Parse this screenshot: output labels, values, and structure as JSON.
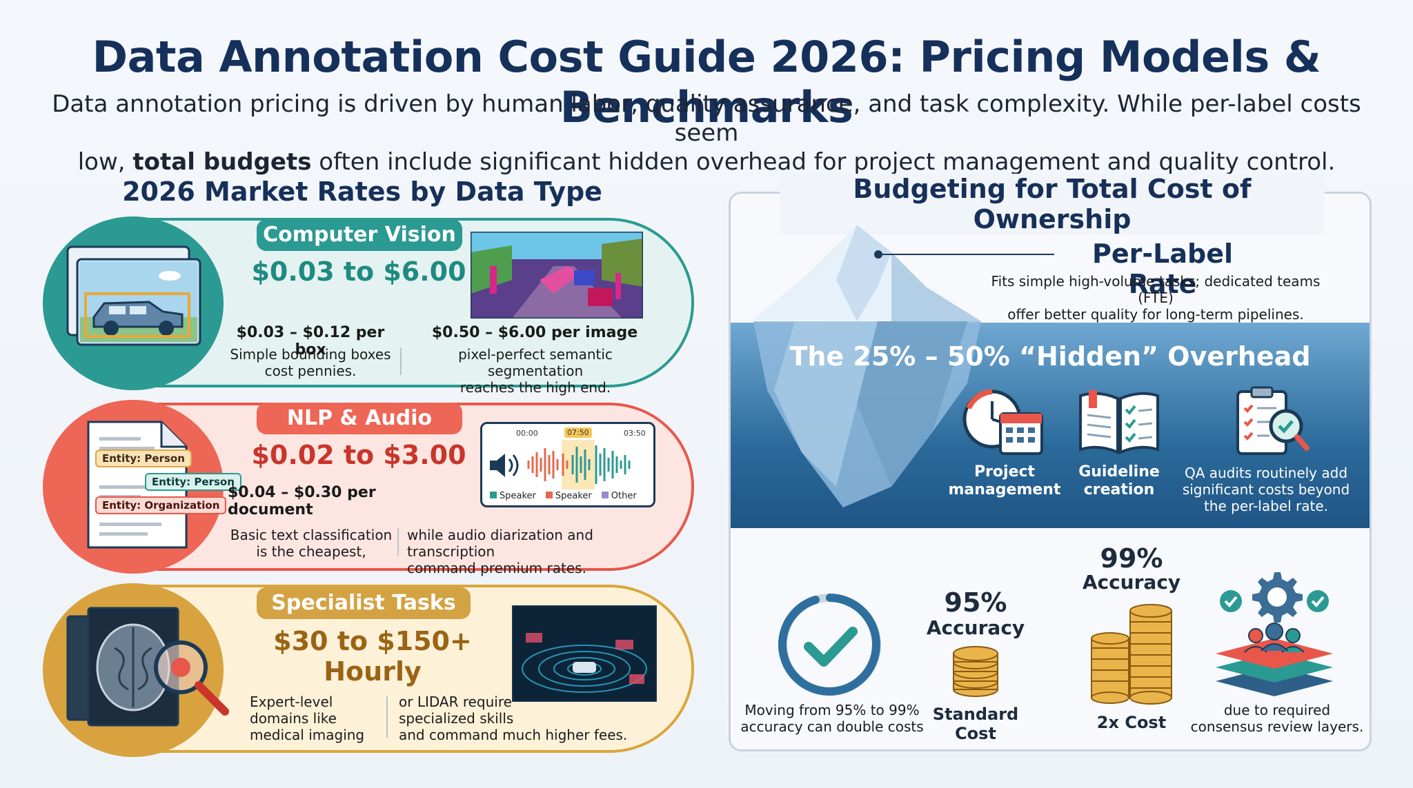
{
  "header": {
    "title": "Data Annotation Cost Guide 2026: Pricing Models & Benchmarks",
    "intro_a": "Data annotation pricing is driven by human labor, quality assurance, and task complexity. While per-label costs seem",
    "intro_b_prefix": "low,",
    "intro_b_bold": "total budgets",
    "intro_b_suffix": "often include significant hidden overhead for project management and quality control."
  },
  "market": {
    "title": "2026 Market Rates by Data Type",
    "cv": {
      "label": "Computer Vision",
      "price": "$0.03 to $6.00",
      "sub1": "$0.03 – $0.12 per box",
      "desc1": [
        "Simple bounding boxes",
        "cost pennies."
      ],
      "sub2": "$0.50 – $6.00 per image",
      "desc2": [
        "pixel-perfect semantic segmentation",
        "reaches the high end."
      ]
    },
    "nlp": {
      "label": "NLP & Audio",
      "price": "$0.02 to $3.00",
      "sub": "$0.04 – $0.30 per document",
      "desc1": [
        "Basic text classification",
        "is the cheapest,"
      ],
      "desc2": [
        "while audio diarization and transcription",
        "command premium rates."
      ],
      "entities": [
        "Entity: Person",
        "Entity: Person",
        "Entity: Organization"
      ],
      "audio": {
        "t_start": "00:00",
        "t_mid": "07:50",
        "t_end": "03:50",
        "legend": [
          "Speaker",
          "Speaker",
          "Other"
        ]
      }
    },
    "spec": {
      "label": "Specialist Tasks",
      "price": "$30 to $150+ Hourly",
      "desc1": [
        "Expert-level",
        "domains like",
        "medical imaging"
      ],
      "desc2": [
        "or LIDAR require",
        "specialized skills",
        "and command much higher fees."
      ]
    }
  },
  "tco": {
    "title": "Budgeting for Total Cost of Ownership",
    "per_label": {
      "title": "Per-Label Rate",
      "desc": [
        "Fits simple high-volume tasks; dedicated teams (FTE)",
        "offer better quality for long-term pipelines."
      ]
    },
    "hidden": {
      "title": "The 25% – 50% “Hidden” Overhead",
      "items": [
        {
          "label": [
            "Project",
            "management"
          ]
        },
        {
          "label": [
            "Guideline",
            "creation"
          ]
        }
      ],
      "qa_desc": [
        "QA audits routinely add",
        "significant costs beyond",
        "the per-label rate."
      ]
    },
    "accuracy": {
      "move_desc": [
        "Moving from 95% to 99%",
        "accuracy can double costs"
      ],
      "a95_pct": "95%",
      "a95_label": "Accuracy",
      "a95_cost": [
        "Standard",
        "Cost"
      ],
      "a99_pct": "99%",
      "a99_label": "Accuracy",
      "a99_cost": "2x Cost",
      "consensus_desc": [
        "due to required",
        "consensus review layers."
      ]
    }
  },
  "colors": {
    "navy": "#15305a",
    "teal": "#2b9a92",
    "coral": "#e8574a",
    "gold": "#c6952e"
  }
}
